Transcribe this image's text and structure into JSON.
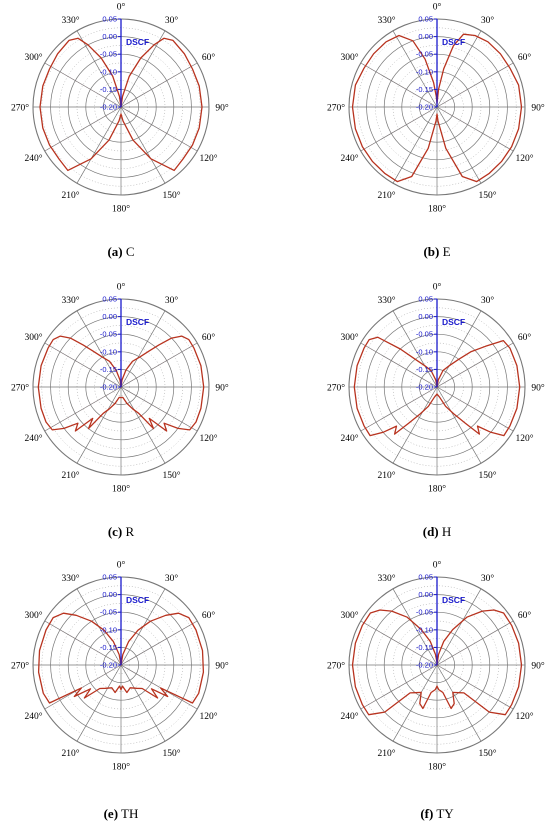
{
  "axis_title": "DSCF",
  "colors": {
    "curve": "#b8331f",
    "axis": "#1a1acc",
    "grid": "#777777",
    "dotted": "#9a9a9a",
    "pink": "#e8a0b4",
    "text": "#000000"
  },
  "chart_data": [
    {
      "type": "polar-line",
      "caption_label": "(a)",
      "caption_text": "C",
      "rlim": [
        -0.2,
        0.05
      ],
      "r_ticks": [
        "0.05",
        "0.00",
        "-0.05",
        "-0.10",
        "-0.15",
        "-0.20"
      ],
      "theta_labels": [
        "0°",
        "30°",
        "60°",
        "90°",
        "120°",
        "150°",
        "180°",
        "210°",
        "240°",
        "270°",
        "300°",
        "330°"
      ],
      "points": [
        [
          0,
          -0.2
        ],
        [
          8,
          -0.17
        ],
        [
          15,
          -0.11
        ],
        [
          22,
          -0.05
        ],
        [
          28,
          0.0
        ],
        [
          32,
          0.03
        ],
        [
          38,
          0.04
        ],
        [
          50,
          0.035
        ],
        [
          62,
          0.03
        ],
        [
          75,
          0.03
        ],
        [
          90,
          0.03
        ],
        [
          105,
          0.03
        ],
        [
          118,
          0.03
        ],
        [
          130,
          0.03
        ],
        [
          140,
          0.035
        ],
        [
          150,
          -0.03
        ],
        [
          160,
          -0.1
        ],
        [
          172,
          -0.16
        ],
        [
          180,
          -0.18
        ],
        [
          188,
          -0.16
        ],
        [
          200,
          -0.1
        ],
        [
          210,
          -0.03
        ],
        [
          220,
          0.035
        ],
        [
          230,
          0.03
        ],
        [
          242,
          0.03
        ],
        [
          255,
          0.03
        ],
        [
          270,
          0.03
        ],
        [
          285,
          0.03
        ],
        [
          298,
          0.03
        ],
        [
          310,
          0.035
        ],
        [
          322,
          0.04
        ],
        [
          328,
          0.03
        ],
        [
          332,
          0.0
        ],
        [
          338,
          -0.05
        ],
        [
          345,
          -0.11
        ],
        [
          352,
          -0.17
        ],
        [
          360,
          -0.2
        ]
      ]
    },
    {
      "type": "polar-line",
      "caption_label": "(b)",
      "caption_text": "E",
      "rlim": [
        -0.2,
        0.05
      ],
      "r_ticks": [
        "0.05",
        "0.00",
        "-0.05",
        "-0.10",
        "-0.15",
        "-0.20"
      ],
      "theta_labels": [
        "0°",
        "30°",
        "60°",
        "90°",
        "120°",
        "150°",
        "180°",
        "210°",
        "240°",
        "270°",
        "300°",
        "330°"
      ],
      "points": [
        [
          0,
          -0.19
        ],
        [
          5,
          -0.15
        ],
        [
          10,
          -0.09
        ],
        [
          15,
          -0.02
        ],
        [
          20,
          0.02
        ],
        [
          28,
          0.03
        ],
        [
          38,
          0.035
        ],
        [
          50,
          0.035
        ],
        [
          62,
          0.035
        ],
        [
          75,
          0.04
        ],
        [
          90,
          0.04
        ],
        [
          105,
          0.04
        ],
        [
          118,
          0.04
        ],
        [
          130,
          0.04
        ],
        [
          142,
          0.04
        ],
        [
          152,
          0.04
        ],
        [
          160,
          0.01
        ],
        [
          168,
          -0.08
        ],
        [
          176,
          -0.16
        ],
        [
          180,
          -0.18
        ],
        [
          184,
          -0.16
        ],
        [
          192,
          -0.08
        ],
        [
          200,
          0.01
        ],
        [
          208,
          0.04
        ],
        [
          218,
          0.04
        ],
        [
          230,
          0.04
        ],
        [
          242,
          0.04
        ],
        [
          255,
          0.04
        ],
        [
          270,
          0.04
        ],
        [
          285,
          0.04
        ],
        [
          298,
          0.035
        ],
        [
          310,
          0.035
        ],
        [
          322,
          0.035
        ],
        [
          332,
          0.03
        ],
        [
          340,
          0.0
        ],
        [
          346,
          -0.06
        ],
        [
          352,
          -0.13
        ],
        [
          356,
          -0.17
        ],
        [
          360,
          -0.19
        ]
      ]
    },
    {
      "type": "polar-line",
      "caption_label": "(c)",
      "caption_text": "R",
      "rlim": [
        -0.2,
        0.05
      ],
      "r_ticks": [
        "0.05",
        "0.00",
        "-0.05",
        "-0.10",
        "-0.15",
        "-0.20"
      ],
      "theta_labels": [
        "0°",
        "30°",
        "60°",
        "90°",
        "120°",
        "150°",
        "180°",
        "210°",
        "240°",
        "270°",
        "300°",
        "330°"
      ],
      "points": [
        [
          0,
          -0.2
        ],
        [
          8,
          -0.18
        ],
        [
          16,
          -0.15
        ],
        [
          24,
          -0.12
        ],
        [
          32,
          -0.1
        ],
        [
          38,
          -0.07
        ],
        [
          42,
          -0.04
        ],
        [
          46,
          0.0
        ],
        [
          50,
          0.025
        ],
        [
          55,
          0.035
        ],
        [
          62,
          0.035
        ],
        [
          75,
          0.035
        ],
        [
          90,
          0.035
        ],
        [
          105,
          0.035
        ],
        [
          115,
          0.035
        ],
        [
          122,
          0.03
        ],
        [
          126,
          0.0
        ],
        [
          130,
          -0.04
        ],
        [
          134,
          -0.02
        ],
        [
          138,
          -0.08
        ],
        [
          142,
          -0.05
        ],
        [
          146,
          -0.11
        ],
        [
          152,
          -0.13
        ],
        [
          160,
          -0.15
        ],
        [
          170,
          -0.17
        ],
        [
          180,
          -0.17
        ],
        [
          190,
          -0.17
        ],
        [
          200,
          -0.15
        ],
        [
          208,
          -0.13
        ],
        [
          214,
          -0.11
        ],
        [
          218,
          -0.05
        ],
        [
          222,
          -0.08
        ],
        [
          226,
          -0.02
        ],
        [
          230,
          -0.04
        ],
        [
          234,
          0.0
        ],
        [
          238,
          0.03
        ],
        [
          245,
          0.035
        ],
        [
          255,
          0.035
        ],
        [
          270,
          0.035
        ],
        [
          285,
          0.035
        ],
        [
          298,
          0.035
        ],
        [
          305,
          0.035
        ],
        [
          310,
          0.025
        ],
        [
          314,
          0.0
        ],
        [
          318,
          -0.04
        ],
        [
          322,
          -0.07
        ],
        [
          328,
          -0.1
        ],
        [
          336,
          -0.12
        ],
        [
          344,
          -0.15
        ],
        [
          352,
          -0.18
        ],
        [
          360,
          -0.2
        ]
      ]
    },
    {
      "type": "polar-line",
      "caption_label": "(d)",
      "caption_text": "H",
      "rlim": [
        -0.2,
        0.05
      ],
      "r_ticks": [
        "0.05",
        "0.00",
        "-0.05",
        "-0.10",
        "-0.15",
        "-0.20"
      ],
      "theta_labels": [
        "0°",
        "30°",
        "60°",
        "90°",
        "120°",
        "150°",
        "180°",
        "210°",
        "240°",
        "270°",
        "300°",
        "330°"
      ],
      "points": [
        [
          0,
          -0.2
        ],
        [
          10,
          -0.18
        ],
        [
          20,
          -0.15
        ],
        [
          30,
          -0.13
        ],
        [
          38,
          -0.1
        ],
        [
          44,
          -0.06
        ],
        [
          50,
          -0.02
        ],
        [
          55,
          0.03
        ],
        [
          62,
          0.035
        ],
        [
          75,
          0.035
        ],
        [
          90,
          0.035
        ],
        [
          105,
          0.035
        ],
        [
          118,
          0.035
        ],
        [
          126,
          0.035
        ],
        [
          130,
          0.0
        ],
        [
          134,
          -0.04
        ],
        [
          138,
          -0.02
        ],
        [
          142,
          -0.07
        ],
        [
          148,
          -0.11
        ],
        [
          156,
          -0.14
        ],
        [
          166,
          -0.17
        ],
        [
          180,
          -0.18
        ],
        [
          194,
          -0.17
        ],
        [
          204,
          -0.14
        ],
        [
          212,
          -0.11
        ],
        [
          218,
          -0.07
        ],
        [
          222,
          -0.02
        ],
        [
          226,
          -0.04
        ],
        [
          230,
          0.0
        ],
        [
          234,
          0.035
        ],
        [
          242,
          0.035
        ],
        [
          255,
          0.035
        ],
        [
          270,
          0.035
        ],
        [
          285,
          0.035
        ],
        [
          298,
          0.035
        ],
        [
          305,
          0.035
        ],
        [
          310,
          0.02
        ],
        [
          316,
          -0.05
        ],
        [
          322,
          -0.1
        ],
        [
          330,
          -0.13
        ],
        [
          340,
          -0.15
        ],
        [
          350,
          -0.18
        ],
        [
          360,
          -0.2
        ]
      ]
    },
    {
      "type": "polar-line",
      "caption_label": "(e)",
      "caption_text": "TH",
      "rlim": [
        -0.2,
        0.05
      ],
      "r_ticks": [
        "0.05",
        "0.00",
        "-0.05",
        "-0.10",
        "-0.15",
        "-0.20"
      ],
      "theta_labels": [
        "0°",
        "30°",
        "60°",
        "90°",
        "120°",
        "150°",
        "180°",
        "210°",
        "240°",
        "270°",
        "300°",
        "330°"
      ],
      "points": [
        [
          0,
          -0.2
        ],
        [
          10,
          -0.17
        ],
        [
          18,
          -0.13
        ],
        [
          26,
          -0.09
        ],
        [
          34,
          -0.05
        ],
        [
          42,
          -0.01
        ],
        [
          48,
          0.02
        ],
        [
          55,
          0.035
        ],
        [
          65,
          0.035
        ],
        [
          80,
          0.035
        ],
        [
          95,
          0.035
        ],
        [
          110,
          0.035
        ],
        [
          118,
          0.03
        ],
        [
          120,
          -0.07
        ],
        [
          124,
          -0.04
        ],
        [
          128,
          -0.09
        ],
        [
          132,
          -0.06
        ],
        [
          138,
          -0.11
        ],
        [
          146,
          -0.12
        ],
        [
          158,
          -0.13
        ],
        [
          168,
          -0.12
        ],
        [
          176,
          -0.14
        ],
        [
          180,
          -0.13
        ],
        [
          184,
          -0.14
        ],
        [
          192,
          -0.12
        ],
        [
          202,
          -0.13
        ],
        [
          214,
          -0.12
        ],
        [
          222,
          -0.11
        ],
        [
          228,
          -0.06
        ],
        [
          232,
          -0.09
        ],
        [
          236,
          -0.04
        ],
        [
          240,
          -0.07
        ],
        [
          242,
          0.03
        ],
        [
          250,
          0.035
        ],
        [
          265,
          0.035
        ],
        [
          280,
          0.035
        ],
        [
          295,
          0.035
        ],
        [
          305,
          0.035
        ],
        [
          312,
          0.02
        ],
        [
          318,
          -0.01
        ],
        [
          326,
          -0.05
        ],
        [
          334,
          -0.09
        ],
        [
          342,
          -0.13
        ],
        [
          350,
          -0.17
        ],
        [
          360,
          -0.2
        ]
      ]
    },
    {
      "type": "polar-line",
      "caption_label": "(f)",
      "caption_text": "TY",
      "rlim": [
        -0.2,
        0.05
      ],
      "r_ticks": [
        "0.05",
        "0.00",
        "-0.05",
        "-0.10",
        "-0.15",
        "-0.20"
      ],
      "theta_labels": [
        "0°",
        "30°",
        "60°",
        "90°",
        "120°",
        "150°",
        "180°",
        "210°",
        "240°",
        "270°",
        "300°",
        "330°"
      ],
      "points": [
        [
          0,
          -0.2
        ],
        [
          8,
          -0.17
        ],
        [
          16,
          -0.13
        ],
        [
          24,
          -0.09
        ],
        [
          32,
          -0.04
        ],
        [
          40,
          0.0
        ],
        [
          46,
          0.025
        ],
        [
          52,
          0.04
        ],
        [
          62,
          0.04
        ],
        [
          75,
          0.04
        ],
        [
          90,
          0.04
        ],
        [
          105,
          0.04
        ],
        [
          118,
          0.04
        ],
        [
          126,
          0.04
        ],
        [
          132,
          0.0
        ],
        [
          136,
          -0.09
        ],
        [
          142,
          -0.1
        ],
        [
          150,
          -0.11
        ],
        [
          156,
          -0.08
        ],
        [
          162,
          -0.07
        ],
        [
          168,
          -0.12
        ],
        [
          176,
          -0.13
        ],
        [
          180,
          -0.14
        ],
        [
          184,
          -0.13
        ],
        [
          192,
          -0.12
        ],
        [
          198,
          -0.07
        ],
        [
          204,
          -0.08
        ],
        [
          210,
          -0.11
        ],
        [
          218,
          -0.1
        ],
        [
          224,
          -0.09
        ],
        [
          228,
          0.0
        ],
        [
          234,
          0.04
        ],
        [
          242,
          0.04
        ],
        [
          255,
          0.04
        ],
        [
          270,
          0.04
        ],
        [
          285,
          0.04
        ],
        [
          298,
          0.04
        ],
        [
          308,
          0.04
        ],
        [
          314,
          0.025
        ],
        [
          320,
          0.0
        ],
        [
          328,
          -0.04
        ],
        [
          336,
          -0.09
        ],
        [
          344,
          -0.13
        ],
        [
          352,
          -0.17
        ],
        [
          356,
          -0.19
        ],
        [
          360,
          -0.2
        ]
      ]
    }
  ]
}
